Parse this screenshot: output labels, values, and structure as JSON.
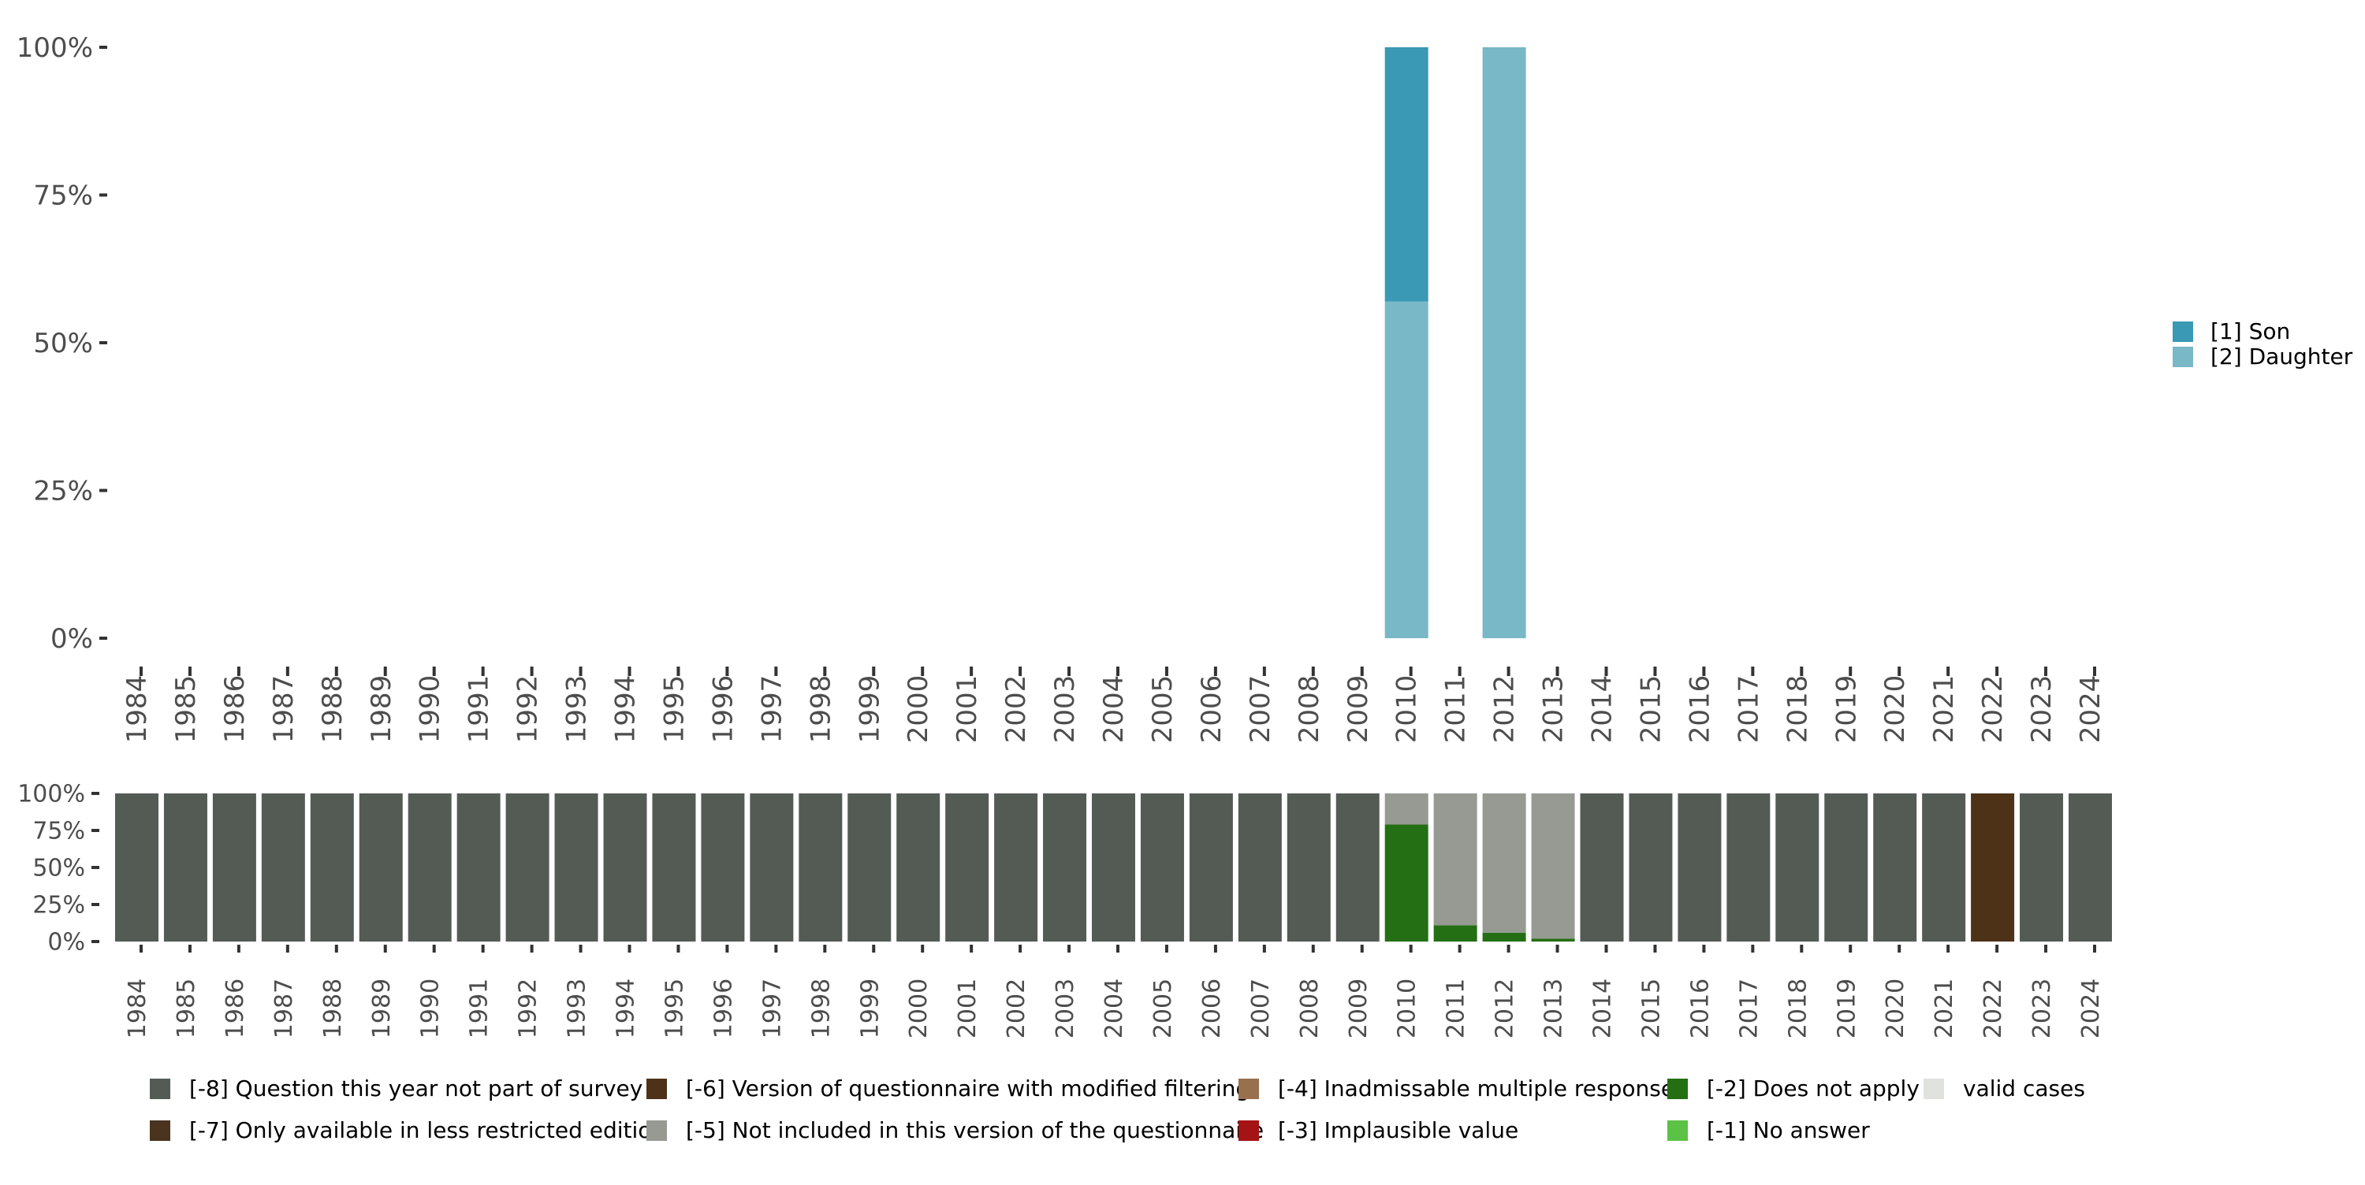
{
  "chart_data": [
    {
      "type": "bar",
      "stacked": true,
      "title": "",
      "xlabel": "",
      "ylabel": "",
      "ylim": [
        0,
        100
      ],
      "y_ticks": [
        "0%",
        "25%",
        "50%",
        "75%",
        "100%"
      ],
      "categories": [
        "1984",
        "1985",
        "1986",
        "1987",
        "1988",
        "1989",
        "1990",
        "1991",
        "1992",
        "1993",
        "1994",
        "1995",
        "1996",
        "1997",
        "1998",
        "1999",
        "2000",
        "2001",
        "2002",
        "2003",
        "2004",
        "2005",
        "2006",
        "2007",
        "2008",
        "2009",
        "2010",
        "2011",
        "2012",
        "2013",
        "2014",
        "2015",
        "2016",
        "2017",
        "2018",
        "2019",
        "2020",
        "2021",
        "2022",
        "2023",
        "2024"
      ],
      "legend_position": "right",
      "series": [
        {
          "name": "[2] Daughter",
          "color": "#79b8c6",
          "values": [
            0,
            0,
            0,
            0,
            0,
            0,
            0,
            0,
            0,
            0,
            0,
            0,
            0,
            0,
            0,
            0,
            0,
            0,
            0,
            0,
            0,
            0,
            0,
            0,
            0,
            0,
            57,
            0,
            100,
            0,
            0,
            0,
            0,
            0,
            0,
            0,
            0,
            0,
            0,
            0,
            0
          ]
        },
        {
          "name": "[1] Son",
          "color": "#3a99b4",
          "values": [
            0,
            0,
            0,
            0,
            0,
            0,
            0,
            0,
            0,
            0,
            0,
            0,
            0,
            0,
            0,
            0,
            0,
            0,
            0,
            0,
            0,
            0,
            0,
            0,
            0,
            0,
            43,
            0,
            0,
            0,
            0,
            0,
            0,
            0,
            0,
            0,
            0,
            0,
            0,
            0,
            0
          ]
        }
      ],
      "legend": [
        {
          "label": "[1] Son",
          "color": "#3a99b4"
        },
        {
          "label": "[2] Daughter",
          "color": "#79b8c6"
        }
      ]
    },
    {
      "type": "bar",
      "stacked": true,
      "title": "",
      "xlabel": "",
      "ylabel": "",
      "ylim": [
        0,
        100
      ],
      "y_ticks": [
        "0%",
        "25%",
        "50%",
        "75%",
        "100%"
      ],
      "categories": [
        "1984",
        "1985",
        "1986",
        "1987",
        "1988",
        "1989",
        "1990",
        "1991",
        "1992",
        "1993",
        "1994",
        "1995",
        "1996",
        "1997",
        "1998",
        "1999",
        "2000",
        "2001",
        "2002",
        "2003",
        "2004",
        "2005",
        "2006",
        "2007",
        "2008",
        "2009",
        "2010",
        "2011",
        "2012",
        "2013",
        "2014",
        "2015",
        "2016",
        "2017",
        "2018",
        "2019",
        "2020",
        "2021",
        "2022",
        "2023",
        "2024"
      ],
      "legend_position": "bottom",
      "series": [
        {
          "name": "[-2] Does not apply",
          "color": "#246f14",
          "values": [
            0,
            0,
            0,
            0,
            0,
            0,
            0,
            0,
            0,
            0,
            0,
            0,
            0,
            0,
            0,
            0,
            0,
            0,
            0,
            0,
            0,
            0,
            0,
            0,
            0,
            0,
            79,
            11,
            6,
            2,
            0,
            0,
            0,
            0,
            0,
            0,
            0,
            0,
            0,
            0,
            0
          ]
        },
        {
          "name": "[-5] Not included in this version of the questionnaire",
          "color": "#969a92",
          "values": [
            0,
            0,
            0,
            0,
            0,
            0,
            0,
            0,
            0,
            0,
            0,
            0,
            0,
            0,
            0,
            0,
            0,
            0,
            0,
            0,
            0,
            0,
            0,
            0,
            0,
            0,
            21,
            89,
            94,
            98,
            0,
            0,
            0,
            0,
            0,
            0,
            0,
            0,
            0,
            0,
            0
          ]
        },
        {
          "name": "[-6] Version of questionnaire with modified filtering",
          "color": "#4e3218",
          "values": [
            0,
            0,
            0,
            0,
            0,
            0,
            0,
            0,
            0,
            0,
            0,
            0,
            0,
            0,
            0,
            0,
            0,
            0,
            0,
            0,
            0,
            0,
            0,
            0,
            0,
            0,
            0,
            0,
            0,
            0,
            0,
            0,
            0,
            0,
            0,
            0,
            0,
            0,
            100,
            0,
            0
          ]
        },
        {
          "name": "[-8] Question this year not part of survey",
          "color": "#545b55",
          "values": [
            100,
            100,
            100,
            100,
            100,
            100,
            100,
            100,
            100,
            100,
            100,
            100,
            100,
            100,
            100,
            100,
            100,
            100,
            100,
            100,
            100,
            100,
            100,
            100,
            100,
            100,
            0,
            0,
            0,
            0,
            100,
            100,
            100,
            100,
            100,
            100,
            100,
            100,
            0,
            100,
            100
          ]
        }
      ],
      "legend": [
        {
          "label": "[-8] Question this year not part of survey",
          "color": "#545b55"
        },
        {
          "label": "[-7] Only available in less restricted edition",
          "color": "#4a3420"
        },
        {
          "label": "[-6] Version of questionnaire with modified filtering",
          "color": "#4e3218"
        },
        {
          "label": "[-5] Not included in this version of the questionnaire",
          "color": "#969a92"
        },
        {
          "label": "[-4] Inadmissable multiple response",
          "color": "#98704e"
        },
        {
          "label": "[-3] Implausible value",
          "color": "#a51414"
        },
        {
          "label": "[-2] Does not apply",
          "color": "#246f14"
        },
        {
          "label": "[-1] No answer",
          "color": "#5bc245"
        },
        {
          "label": "valid cases",
          "color": "#e0e2de"
        }
      ]
    }
  ]
}
